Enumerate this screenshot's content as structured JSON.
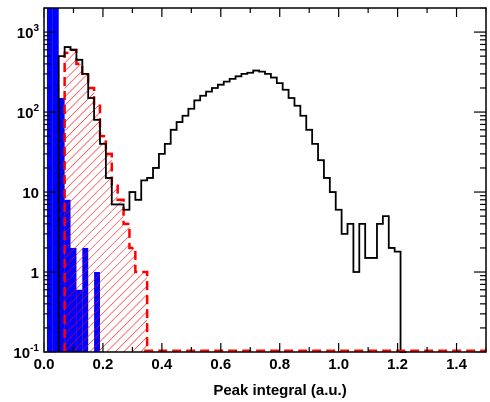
{
  "chart_data": {
    "type": "histogram",
    "title": "",
    "xlabel": "Peak integral (a.u.)",
    "ylabel": "",
    "xlim": [
      0.0,
      1.5
    ],
    "ylim": [
      0.1,
      2000
    ],
    "yscale": "log",
    "grid": false,
    "legend": "none",
    "x_ticks": [
      "0.0",
      "0.2",
      "0.4",
      "0.6",
      "0.8",
      "1.0",
      "1.2",
      "1.4"
    ],
    "y_ticks": [
      {
        "mantissa": "10",
        "exp": "-1",
        "value": 0.1
      },
      {
        "mantissa": "1",
        "exp": "",
        "value": 1
      },
      {
        "mantissa": "10",
        "exp": "",
        "value": 10
      },
      {
        "mantissa": "10",
        "exp": "2",
        "value": 100
      },
      {
        "mantissa": "10",
        "exp": "3",
        "value": 1000
      }
    ],
    "bin_width": 0.02,
    "series": [
      {
        "style": "blue-filled",
        "color": "#0000ff",
        "bins": [
          {
            "x": 0.02,
            "y": 2000
          },
          {
            "x": 0.04,
            "y": 2000
          },
          {
            "x": 0.06,
            "y": 150
          },
          {
            "x": 0.08,
            "y": 8
          },
          {
            "x": 0.1,
            "y": 2
          },
          {
            "x": 0.12,
            "y": 0.6
          },
          {
            "x": 0.14,
            "y": 2
          },
          {
            "x": 0.16,
            "y": 0.1
          },
          {
            "x": 0.18,
            "y": 1
          },
          {
            "x": 0.2,
            "y": 0.1
          }
        ]
      },
      {
        "style": "red-dashed-hatched",
        "color": "#ff0000",
        "bins": [
          {
            "x": 0.08,
            "y": 550
          },
          {
            "x": 0.1,
            "y": 600
          },
          {
            "x": 0.12,
            "y": 400
          },
          {
            "x": 0.14,
            "y": 300
          },
          {
            "x": 0.16,
            "y": 200
          },
          {
            "x": 0.18,
            "y": 120
          },
          {
            "x": 0.2,
            "y": 50
          },
          {
            "x": 0.22,
            "y": 30
          },
          {
            "x": 0.24,
            "y": 12
          },
          {
            "x": 0.26,
            "y": 8
          },
          {
            "x": 0.28,
            "y": 4
          },
          {
            "x": 0.3,
            "y": 2
          },
          {
            "x": 0.32,
            "y": 1
          },
          {
            "x": 0.34,
            "y": 1
          }
        ]
      },
      {
        "style": "black-step",
        "color": "#000000",
        "bins": [
          {
            "x": 0.06,
            "y": 500
          },
          {
            "x": 0.08,
            "y": 650
          },
          {
            "x": 0.1,
            "y": 600
          },
          {
            "x": 0.12,
            "y": 450
          },
          {
            "x": 0.14,
            "y": 300
          },
          {
            "x": 0.16,
            "y": 150
          },
          {
            "x": 0.18,
            "y": 80
          },
          {
            "x": 0.2,
            "y": 40
          },
          {
            "x": 0.22,
            "y": 15
          },
          {
            "x": 0.24,
            "y": 7
          },
          {
            "x": 0.26,
            "y": 7
          },
          {
            "x": 0.28,
            "y": 6
          },
          {
            "x": 0.3,
            "y": 10
          },
          {
            "x": 0.32,
            "y": 8
          },
          {
            "x": 0.34,
            "y": 14
          },
          {
            "x": 0.36,
            "y": 15
          },
          {
            "x": 0.38,
            "y": 20
          },
          {
            "x": 0.4,
            "y": 30
          },
          {
            "x": 0.42,
            "y": 40
          },
          {
            "x": 0.44,
            "y": 60
          },
          {
            "x": 0.46,
            "y": 75
          },
          {
            "x": 0.48,
            "y": 90
          },
          {
            "x": 0.5,
            "y": 110
          },
          {
            "x": 0.52,
            "y": 140
          },
          {
            "x": 0.54,
            "y": 160
          },
          {
            "x": 0.56,
            "y": 180
          },
          {
            "x": 0.58,
            "y": 200
          },
          {
            "x": 0.6,
            "y": 220
          },
          {
            "x": 0.62,
            "y": 240
          },
          {
            "x": 0.64,
            "y": 260
          },
          {
            "x": 0.66,
            "y": 280
          },
          {
            "x": 0.68,
            "y": 300
          },
          {
            "x": 0.7,
            "y": 310
          },
          {
            "x": 0.72,
            "y": 330
          },
          {
            "x": 0.74,
            "y": 320
          },
          {
            "x": 0.76,
            "y": 300
          },
          {
            "x": 0.78,
            "y": 270
          },
          {
            "x": 0.8,
            "y": 230
          },
          {
            "x": 0.82,
            "y": 190
          },
          {
            "x": 0.84,
            "y": 150
          },
          {
            "x": 0.86,
            "y": 120
          },
          {
            "x": 0.88,
            "y": 90
          },
          {
            "x": 0.9,
            "y": 60
          },
          {
            "x": 0.92,
            "y": 40
          },
          {
            "x": 0.94,
            "y": 25
          },
          {
            "x": 0.96,
            "y": 15
          },
          {
            "x": 0.98,
            "y": 10
          },
          {
            "x": 1.0,
            "y": 6
          },
          {
            "x": 1.02,
            "y": 3
          },
          {
            "x": 1.04,
            "y": 4
          },
          {
            "x": 1.06,
            "y": 1
          },
          {
            "x": 1.08,
            "y": 4
          },
          {
            "x": 1.1,
            "y": 1.5
          },
          {
            "x": 1.12,
            "y": 1.5
          },
          {
            "x": 1.14,
            "y": 4
          },
          {
            "x": 1.16,
            "y": 5
          },
          {
            "x": 1.18,
            "y": 2
          },
          {
            "x": 1.2,
            "y": 1.8
          },
          {
            "x": 1.22,
            "y": 0.1
          }
        ]
      }
    ]
  }
}
